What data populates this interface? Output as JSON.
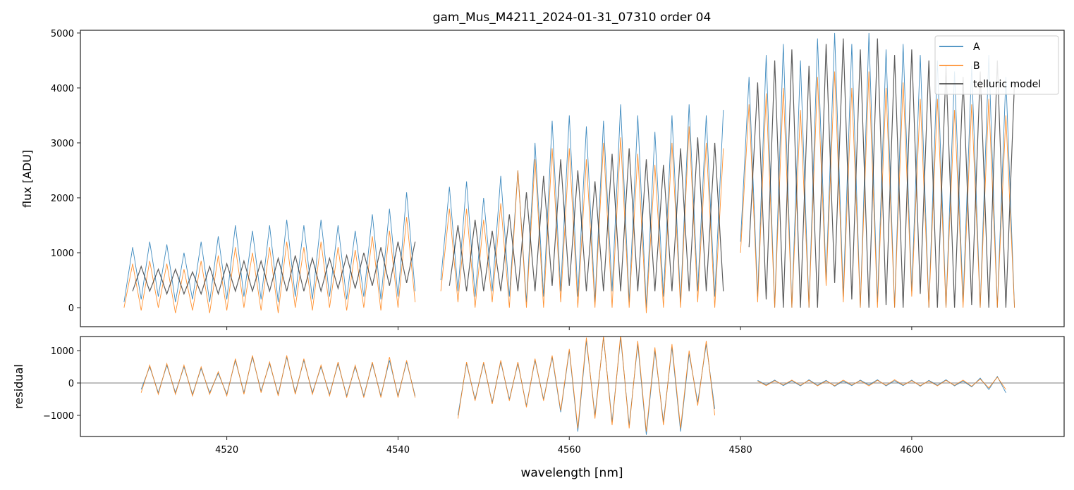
{
  "chart_data": {
    "type": "line",
    "title": "gam_Mus_M4211_2024-01-31_07310  order 04",
    "xlabel": "wavelength [nm]",
    "xlim": [
      4502.9,
      4617.8
    ],
    "xticks": [
      4520,
      4540,
      4560,
      4580,
      4600
    ],
    "colors": {
      "A": "#1f77b4",
      "B": "#ff7f0e",
      "model": "#333333",
      "zero": "#555555"
    },
    "top_panel": {
      "ylabel": "flux [ADU]",
      "ylim": [
        -346,
        5050
      ],
      "yticks": [
        0,
        1000,
        2000,
        3000,
        4000,
        5000
      ],
      "legend": {
        "placement": "top-right",
        "entries": [
          "A",
          "B",
          "telluric model"
        ]
      },
      "series": [
        {
          "name": "A",
          "segments": [
            {
              "x0": 4508,
              "step": 1,
              "y": [
                100,
                1100,
                150,
                1200,
                200,
                1150,
                100,
                1000,
                150,
                1200,
                100,
                1300,
                150,
                1500,
                200,
                1400,
                150,
                1500,
                100,
                1600,
                200,
                1500,
                150,
                1600,
                200,
                1500,
                150,
                1400,
                200,
                1700,
                150,
                1800,
                200,
                2100,
                300
              ]
            },
            {
              "x0": 4545,
              "step": 1,
              "y": [
                500,
                2200,
                300,
                2300,
                200,
                2000,
                300,
                2400,
                200,
                2500,
                100,
                3000,
                200,
                3400,
                300,
                3500,
                200,
                3300,
                100,
                3400,
                300,
                3700,
                100,
                3500,
                0,
                3200,
                200,
                3500,
                100,
                3700,
                300,
                3500,
                200,
                3600
              ]
            },
            {
              "x0": 4580,
              "step": 1,
              "y": [
                1200,
                4200,
                200,
                4600,
                0,
                4800,
                0,
                4500,
                0,
                4900,
                500,
                5000,
                200,
                4800,
                0,
                5000,
                100,
                4700,
                0,
                4800,
                300,
                4600,
                0,
                4500,
                0,
                4300,
                100,
                4400,
                0,
                4600,
                0,
                4200,
                0
              ]
            }
          ]
        },
        {
          "name": "B",
          "segments": [
            {
              "x0": 4508,
              "step": 1,
              "y": [
                0,
                800,
                -50,
                850,
                0,
                800,
                -100,
                700,
                -50,
                850,
                -100,
                950,
                -50,
                1100,
                0,
                1000,
                -50,
                1100,
                -100,
                1200,
                0,
                1100,
                -50,
                1200,
                0,
                1100,
                -50,
                1050,
                0,
                1300,
                -50,
                1400,
                0,
                1650,
                100
              ]
            },
            {
              "x0": 4545,
              "step": 1,
              "y": [
                300,
                1800,
                100,
                1800,
                0,
                1600,
                100,
                1900,
                0,
                2500,
                0,
                2700,
                0,
                2900,
                100,
                2900,
                0,
                2700,
                0,
                3000,
                0,
                3100,
                0,
                2800,
                -100,
                2600,
                0,
                3000,
                0,
                3300,
                100,
                3000,
                0,
                2900
              ]
            },
            {
              "x0": 4580,
              "step": 1,
              "y": [
                1000,
                3700,
                100,
                3900,
                0,
                4000,
                0,
                3600,
                0,
                4200,
                400,
                4300,
                100,
                4000,
                0,
                4300,
                0,
                4000,
                0,
                4100,
                200,
                3800,
                0,
                3800,
                0,
                3600,
                0,
                3700,
                0,
                3800,
                0,
                3500,
                0
              ]
            }
          ]
        },
        {
          "name": "telluric model",
          "segments": [
            {
              "x0": 4509,
              "step": 1,
              "y": [
                300,
                750,
                300,
                700,
                250,
                700,
                250,
                650,
                250,
                750,
                250,
                800,
                300,
                850,
                300,
                850,
                300,
                900,
                300,
                950,
                300,
                900,
                300,
                900,
                350,
                950,
                350,
                1000,
                400,
                1100,
                400,
                1200,
                450,
                1200
              ]
            },
            {
              "x0": 4546,
              "step": 1,
              "y": [
                400,
                1500,
                300,
                1600,
                300,
                1400,
                300,
                1700,
                300,
                2100,
                300,
                2400,
                400,
                2700,
                400,
                2500,
                300,
                2300,
                300,
                2800,
                300,
                2900,
                300,
                2700,
                300,
                2600,
                300,
                2900,
                300,
                3100,
                300,
                3000,
                300
              ]
            },
            {
              "x0": 4581,
              "step": 1,
              "y": [
                1100,
                4100,
                150,
                4500,
                0,
                4700,
                0,
                4400,
                0,
                4800,
                450,
                4900,
                150,
                4700,
                0,
                4900,
                50,
                4600,
                0,
                4700,
                250,
                4500,
                0,
                4400,
                0,
                4200,
                50,
                4300,
                0,
                4500,
                0,
                4100
              ]
            }
          ]
        }
      ]
    },
    "bottom_panel": {
      "ylabel": "residual",
      "ylim": [
        -1652,
        1435
      ],
      "yticks": [
        -1000,
        0,
        1000
      ],
      "series": [
        {
          "name": "A",
          "segments": [
            {
              "x0": 4510,
              "step": 1,
              "y": [
                -200,
                500,
                -300,
                550,
                -300,
                500,
                -350,
                450,
                -300,
                300,
                -350,
                700,
                -300,
                800,
                -250,
                600,
                -350,
                800,
                -300,
                700,
                -300,
                500,
                -350,
                600,
                -400,
                500,
                -400,
                600,
                -400,
                700,
                -400,
                650,
                -400
              ]
            },
            {
              "x0": 4547,
              "step": 1,
              "y": [
                -1000,
                600,
                -500,
                600,
                -600,
                650,
                -500,
                600,
                -700,
                700,
                -500,
                800,
                -900,
                1000,
                -1500,
                1300,
                -1000,
                1400,
                -1200,
                1400,
                -1300,
                1200,
                -1600,
                1000,
                -1200,
                1100,
                -1500,
                900,
                -600,
                1200,
                -800
              ]
            },
            {
              "x0": 4582,
              "step": 1,
              "y": [
                80,
                -60,
                90,
                -80,
                70,
                -90,
                100,
                -70,
                80,
                -100,
                60,
                -80,
                90,
                -60,
                100,
                -90,
                70,
                -80,
                90,
                -100,
                80,
                -70,
                100,
                -90,
                60,
                -120,
                150,
                -200,
                200,
                -300
              ]
            }
          ]
        },
        {
          "name": "B",
          "segments": [
            {
              "x0": 4510,
              "step": 1,
              "y": [
                -300,
                550,
                -350,
                600,
                -350,
                550,
                -400,
                500,
                -350,
                350,
                -400,
                750,
                -350,
                850,
                -300,
                650,
                -400,
                850,
                -350,
                750,
                -350,
                550,
                -400,
                650,
                -450,
                550,
                -450,
                650,
                -450,
                800,
                -450,
                700,
                -450
              ]
            },
            {
              "x0": 4547,
              "step": 1,
              "y": [
                -1100,
                650,
                -550,
                650,
                -650,
                700,
                -550,
                650,
                -750,
                750,
                -550,
                850,
                -850,
                1050,
                -1400,
                1400,
                -1100,
                1450,
                -1300,
                1500,
                -1400,
                1300,
                -1500,
                1100,
                -1300,
                1200,
                -1400,
                1000,
                -700,
                1300,
                -1000
              ]
            },
            {
              "x0": 4582,
              "step": 1,
              "y": [
                60,
                -80,
                70,
                -60,
                90,
                -70,
                80,
                -90,
                60,
                -80,
                90,
                -60,
                70,
                -90,
                80,
                -70,
                100,
                -60,
                70,
                -80,
                60,
                -90,
                80,
                -70,
                90,
                -100,
                120,
                -150,
                180,
                -200
              ]
            }
          ]
        }
      ]
    }
  }
}
